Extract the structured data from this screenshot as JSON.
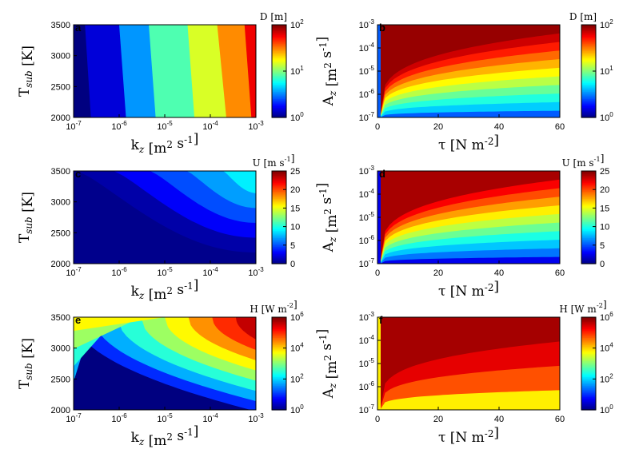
{
  "chart_data": [
    {
      "panel": "a",
      "type": "heatmap",
      "xlabel": "k_z [m^2 s^-1]",
      "ylabel": "T_sub [K]",
      "xscale": "log",
      "xlim": [
        1e-07,
        0.001
      ],
      "ylim": [
        2000,
        3500
      ],
      "x_ticks": [
        "10^-7",
        "10^-6",
        "10^-5",
        "10^-4",
        "10^-3"
      ],
      "y_ticks": [
        "2000",
        "2500",
        "3000",
        "3500"
      ],
      "colorbar": {
        "label": "D [m]",
        "scale": "log",
        "range": [
          1,
          100
        ],
        "ticks": [
          "10^0",
          "10^1",
          "10^2"
        ]
      },
      "bands": [
        {
          "level": 1.0,
          "x_bottom_log": -7.0,
          "x_top_log": -7.0
        },
        {
          "level": 1.5,
          "x_bottom_log": -6.62,
          "x_top_log": -6.75
        },
        {
          "level": 3.5,
          "x_bottom_log": -5.85,
          "x_top_log": -6.0
        },
        {
          "level": 8,
          "x_bottom_log": -5.2,
          "x_top_log": -5.35
        },
        {
          "level": 15,
          "x_bottom_log": -4.35,
          "x_top_log": -4.5
        },
        {
          "level": 30,
          "x_bottom_log": -3.65,
          "x_top_log": -3.85
        },
        {
          "level": 60,
          "x_bottom_log": -3.1,
          "x_top_log": -3.25
        }
      ]
    },
    {
      "panel": "b",
      "type": "heatmap",
      "xlabel": "τ [N m^-2]",
      "ylabel": "A_z [m^2 s^-1]",
      "xlim": [
        0,
        60
      ],
      "yscale": "log",
      "ylim": [
        1e-07,
        0.001
      ],
      "x_ticks": [
        "0",
        "20",
        "40",
        "60"
      ],
      "y_ticks": [
        "10^-7",
        "10^-6",
        "10^-5",
        "10^-4",
        "10^-3"
      ],
      "colorbar": {
        "label": "D [m]",
        "scale": "log",
        "range": [
          1,
          100
        ],
        "ticks": [
          "10^0",
          "10^1",
          "10^2"
        ]
      },
      "levels": [
        3,
        4.5,
        6.5,
        9,
        13,
        18,
        25,
        35,
        50,
        70,
        90
      ]
    },
    {
      "panel": "c",
      "type": "heatmap",
      "xlabel": "k_z [m^2 s^-1]",
      "ylabel": "T_sub [K]",
      "xscale": "log",
      "xlim": [
        1e-07,
        0.001
      ],
      "ylim": [
        2000,
        3500
      ],
      "x_ticks": [
        "10^-7",
        "10^-6",
        "10^-5",
        "10^-4",
        "10^-3"
      ],
      "y_ticks": [
        "2000",
        "2500",
        "3000",
        "3500"
      ],
      "colorbar": {
        "label": "U [m s^-1]",
        "scale": "linear",
        "range": [
          0,
          25
        ],
        "ticks": [
          "0",
          "5",
          "10",
          "15",
          "20",
          "25"
        ]
      },
      "levels": [
        1,
        3,
        5,
        7,
        9
      ]
    },
    {
      "panel": "d",
      "type": "heatmap",
      "xlabel": "τ [N m^-2]",
      "ylabel": "A_z [m^2 s^-1]",
      "xlim": [
        0,
        60
      ],
      "yscale": "log",
      "ylim": [
        1e-07,
        0.001
      ],
      "x_ticks": [
        "0",
        "20",
        "40",
        "60"
      ],
      "y_ticks": [
        "10^-7",
        "10^-6",
        "10^-5",
        "10^-4",
        "10^-3"
      ],
      "colorbar": {
        "label": "U [m s^-1]",
        "scale": "linear",
        "range": [
          0,
          25
        ],
        "ticks": [
          "0",
          "5",
          "10",
          "15",
          "20",
          "25"
        ]
      },
      "levels": [
        3,
        6,
        8,
        10,
        12,
        14,
        16,
        18,
        20,
        22,
        24
      ]
    },
    {
      "panel": "e",
      "type": "heatmap",
      "xlabel": "k_z [m^2 s^-1]",
      "ylabel": "T_sub [K]",
      "xscale": "log",
      "xlim": [
        1e-07,
        0.001
      ],
      "ylim": [
        2000,
        3500
      ],
      "x_ticks": [
        "10^-7",
        "10^-6",
        "10^-5",
        "10^-4",
        "10^-3"
      ],
      "y_ticks": [
        "2000",
        "2500",
        "3000",
        "3500"
      ],
      "colorbar": {
        "label": "H [W m^-2]",
        "scale": "log",
        "range": [
          1,
          1000000
        ],
        "ticks": [
          "10^0",
          "10^2",
          "10^4",
          "10^6"
        ]
      },
      "levels": [
        10,
        60,
        300,
        1500,
        6000,
        25000,
        100000,
        400000
      ]
    },
    {
      "panel": "f",
      "type": "heatmap",
      "xlabel": "τ [N m^-2]",
      "ylabel": "A_z [m^2 s^-1]",
      "xlim": [
        0,
        60
      ],
      "yscale": "log",
      "ylim": [
        1e-07,
        0.001
      ],
      "x_ticks": [
        "0",
        "20",
        "40",
        "60"
      ],
      "y_ticks": [
        "10^-7",
        "10^-6",
        "10^-5",
        "10^-4",
        "10^-3"
      ],
      "colorbar": {
        "label": "H [W m^-2]",
        "scale": "log",
        "range": [
          1,
          1000000
        ],
        "ticks": [
          "10^0",
          "10^2",
          "10^4",
          "10^6"
        ]
      },
      "levels": [
        10000,
        60000,
        250000,
        600000
      ]
    }
  ]
}
